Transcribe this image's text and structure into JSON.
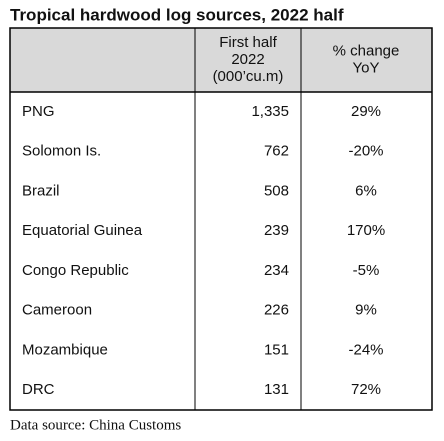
{
  "title": "Tropical hardwood log sources, 2022 half",
  "table": {
    "header": [
      [],
      [
        "First half",
        "2022",
        "(000’cu.m)"
      ],
      [
        "% change",
        "YoY"
      ]
    ],
    "rows": [
      [
        "PNG",
        "1,335",
        "29%"
      ],
      [
        "Solomon Is.",
        "762",
        "-20%"
      ],
      [
        "Brazil",
        "508",
        "6%"
      ],
      [
        "Equatorial Guinea",
        "239",
        "170%"
      ],
      [
        "Congo Republic",
        "234",
        "-5%"
      ],
      [
        "Cameroon",
        "226",
        "9%"
      ],
      [
        "Mozambique",
        "151",
        "-24%"
      ],
      [
        "DRC",
        "131",
        "72%"
      ]
    ]
  },
  "source": "Data source: China Customs"
}
